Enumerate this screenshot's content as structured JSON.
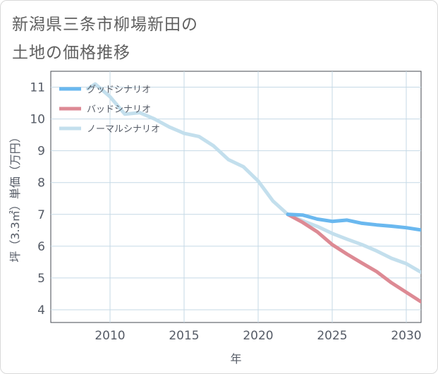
{
  "title_lines": [
    "新潟県三条市柳場新田の",
    "土地の価格推移"
  ],
  "chart_data": {
    "type": "line",
    "xlabel": "年",
    "ylabel": "坪（3.3㎡）単価（万円）",
    "xlim": [
      2006,
      2031
    ],
    "ylim": [
      3.6,
      11.5
    ],
    "xticks": [
      2010,
      2015,
      2020,
      2025,
      2030
    ],
    "yticks": [
      4,
      5,
      6,
      7,
      8,
      9,
      10,
      11
    ],
    "grid": true,
    "legend_position": "top-left",
    "series": [
      {
        "name": "グッドシナリオ",
        "color": "#6ab8ef",
        "x": [
          2022,
          2023,
          2024,
          2025,
          2026,
          2027,
          2028,
          2029,
          2030,
          2031
        ],
        "values": [
          7.0,
          6.98,
          6.85,
          6.78,
          6.82,
          6.72,
          6.67,
          6.63,
          6.58,
          6.51
        ]
      },
      {
        "name": "バッドシナリオ",
        "color": "#dd8a94",
        "x": [
          2022,
          2023,
          2024,
          2025,
          2026,
          2027,
          2028,
          2029,
          2030,
          2031
        ],
        "values": [
          7.0,
          6.75,
          6.45,
          6.05,
          5.75,
          5.47,
          5.2,
          4.85,
          4.55,
          4.25
        ]
      },
      {
        "name": "ノーマルシナリオ",
        "color": "#c3dfed",
        "x": [
          2008.5,
          2009,
          2010,
          2011,
          2012,
          2013,
          2014,
          2015,
          2016,
          2017,
          2018,
          2019,
          2020,
          2021,
          2022,
          2023,
          2024,
          2025,
          2026,
          2027,
          2028,
          2029,
          2030,
          2031
        ],
        "values": [
          10.95,
          11.1,
          10.7,
          10.15,
          10.2,
          10.0,
          9.75,
          9.55,
          9.45,
          9.15,
          8.72,
          8.5,
          8.05,
          7.42,
          7.0,
          6.8,
          6.62,
          6.4,
          6.22,
          6.05,
          5.85,
          5.62,
          5.45,
          5.18
        ]
      }
    ]
  }
}
